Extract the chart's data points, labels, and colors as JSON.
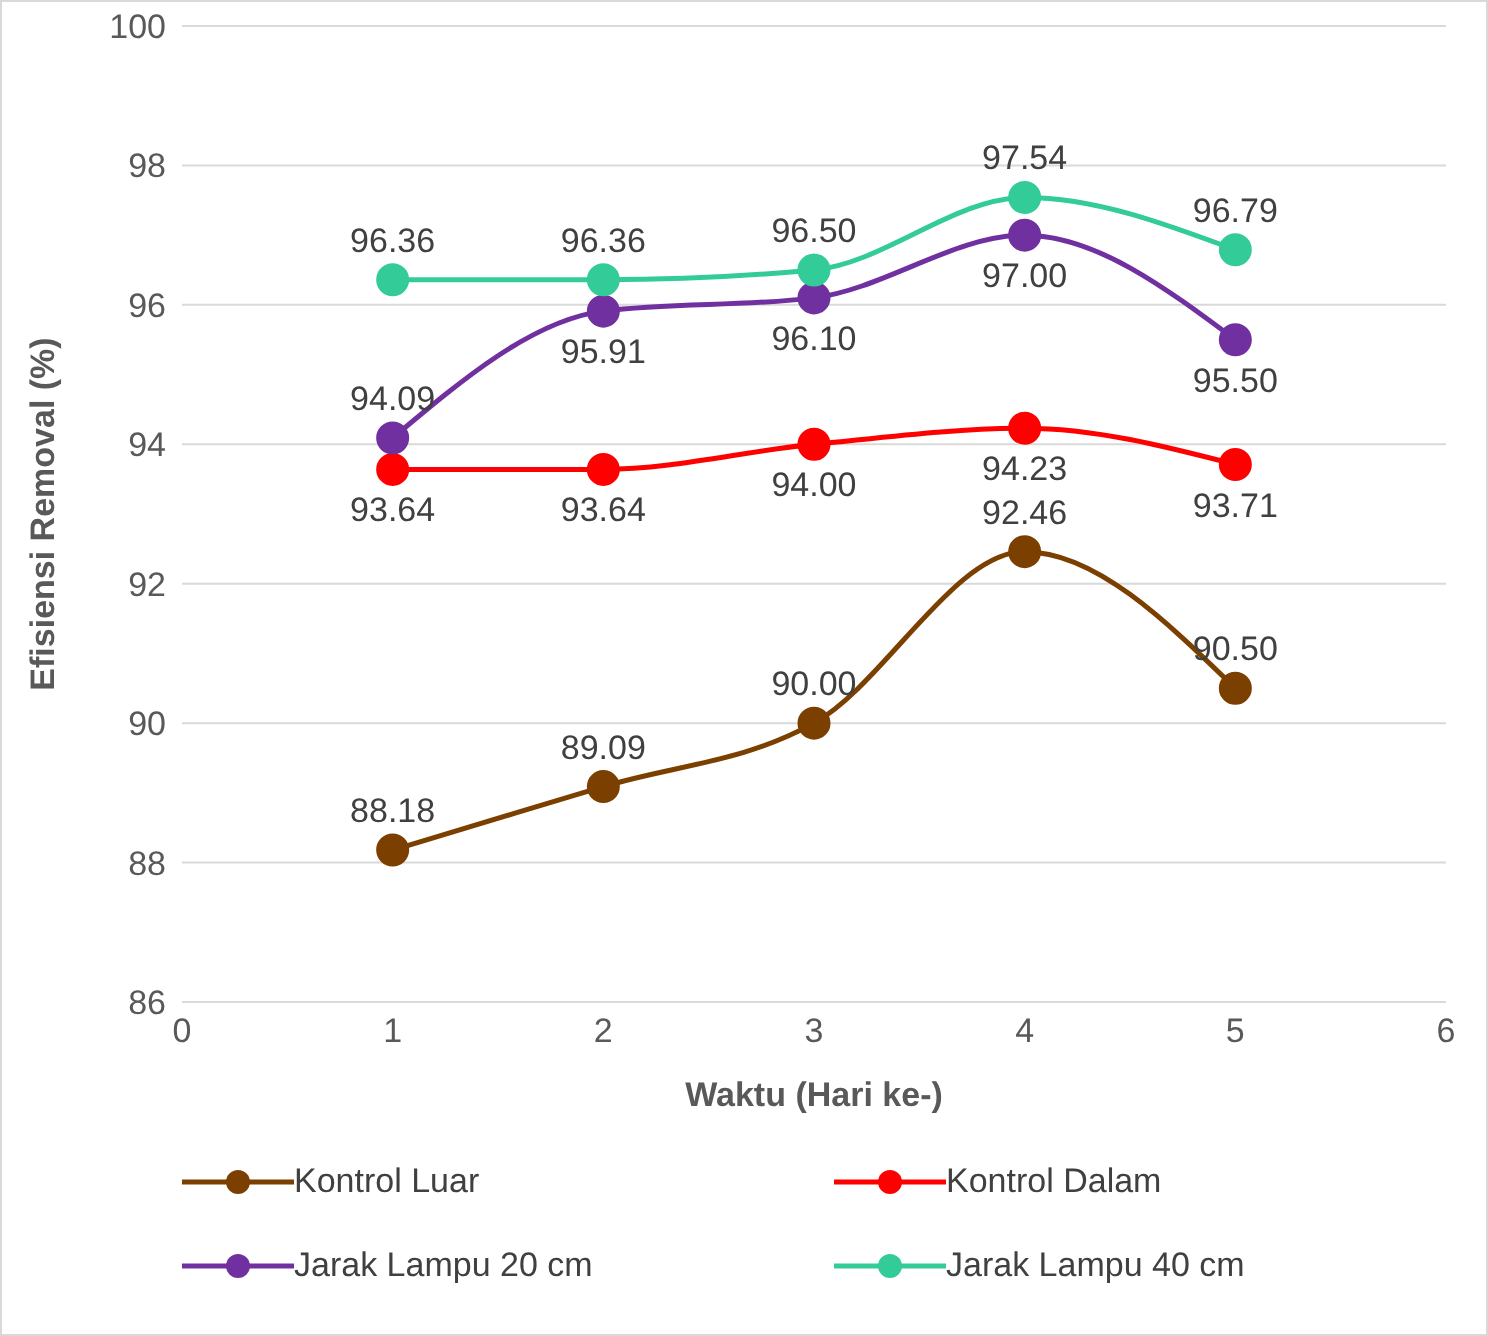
{
  "chart_data": {
    "type": "line",
    "xlabel": "Waktu (Hari ke-)",
    "ylabel": "Efisiensi Removal (%)",
    "x": [
      1,
      2,
      3,
      4,
      5
    ],
    "xlim": [
      0,
      6
    ],
    "xticks": [
      0,
      1,
      2,
      3,
      4,
      5,
      6
    ],
    "ylim": [
      86,
      100
    ],
    "yticks": [
      86,
      88,
      90,
      92,
      94,
      96,
      98,
      100
    ],
    "grid": "y",
    "legend": "bottom",
    "marker": "circle",
    "series": [
      {
        "name": "Kontrol Luar",
        "color": "#7b3f00",
        "values": [
          88.18,
          89.09,
          90.0,
          92.46,
          90.5
        ],
        "value_labels": [
          "88.18",
          "89.09",
          "90.00",
          "92.46",
          "90.50"
        ]
      },
      {
        "name": "Kontrol Dalam",
        "color": "#ff0000",
        "values": [
          93.64,
          93.64,
          94.0,
          94.23,
          93.71
        ],
        "value_labels": [
          "93.64",
          "93.64",
          "94.00",
          "94.23",
          "93.71"
        ]
      },
      {
        "name": "Jarak Lampu 20 cm",
        "color": "#7030a0",
        "values": [
          94.09,
          95.91,
          96.1,
          97.0,
          95.5
        ],
        "value_labels": [
          "94.09",
          "95.91",
          "96.10",
          "97.00",
          "95.50"
        ]
      },
      {
        "name": "Jarak Lampu 40 cm",
        "color": "#33cc99",
        "values": [
          96.36,
          96.36,
          96.5,
          97.54,
          96.79
        ],
        "value_labels": [
          "96.36",
          "96.36",
          "96.50",
          "97.54",
          "96.79"
        ]
      }
    ]
  }
}
